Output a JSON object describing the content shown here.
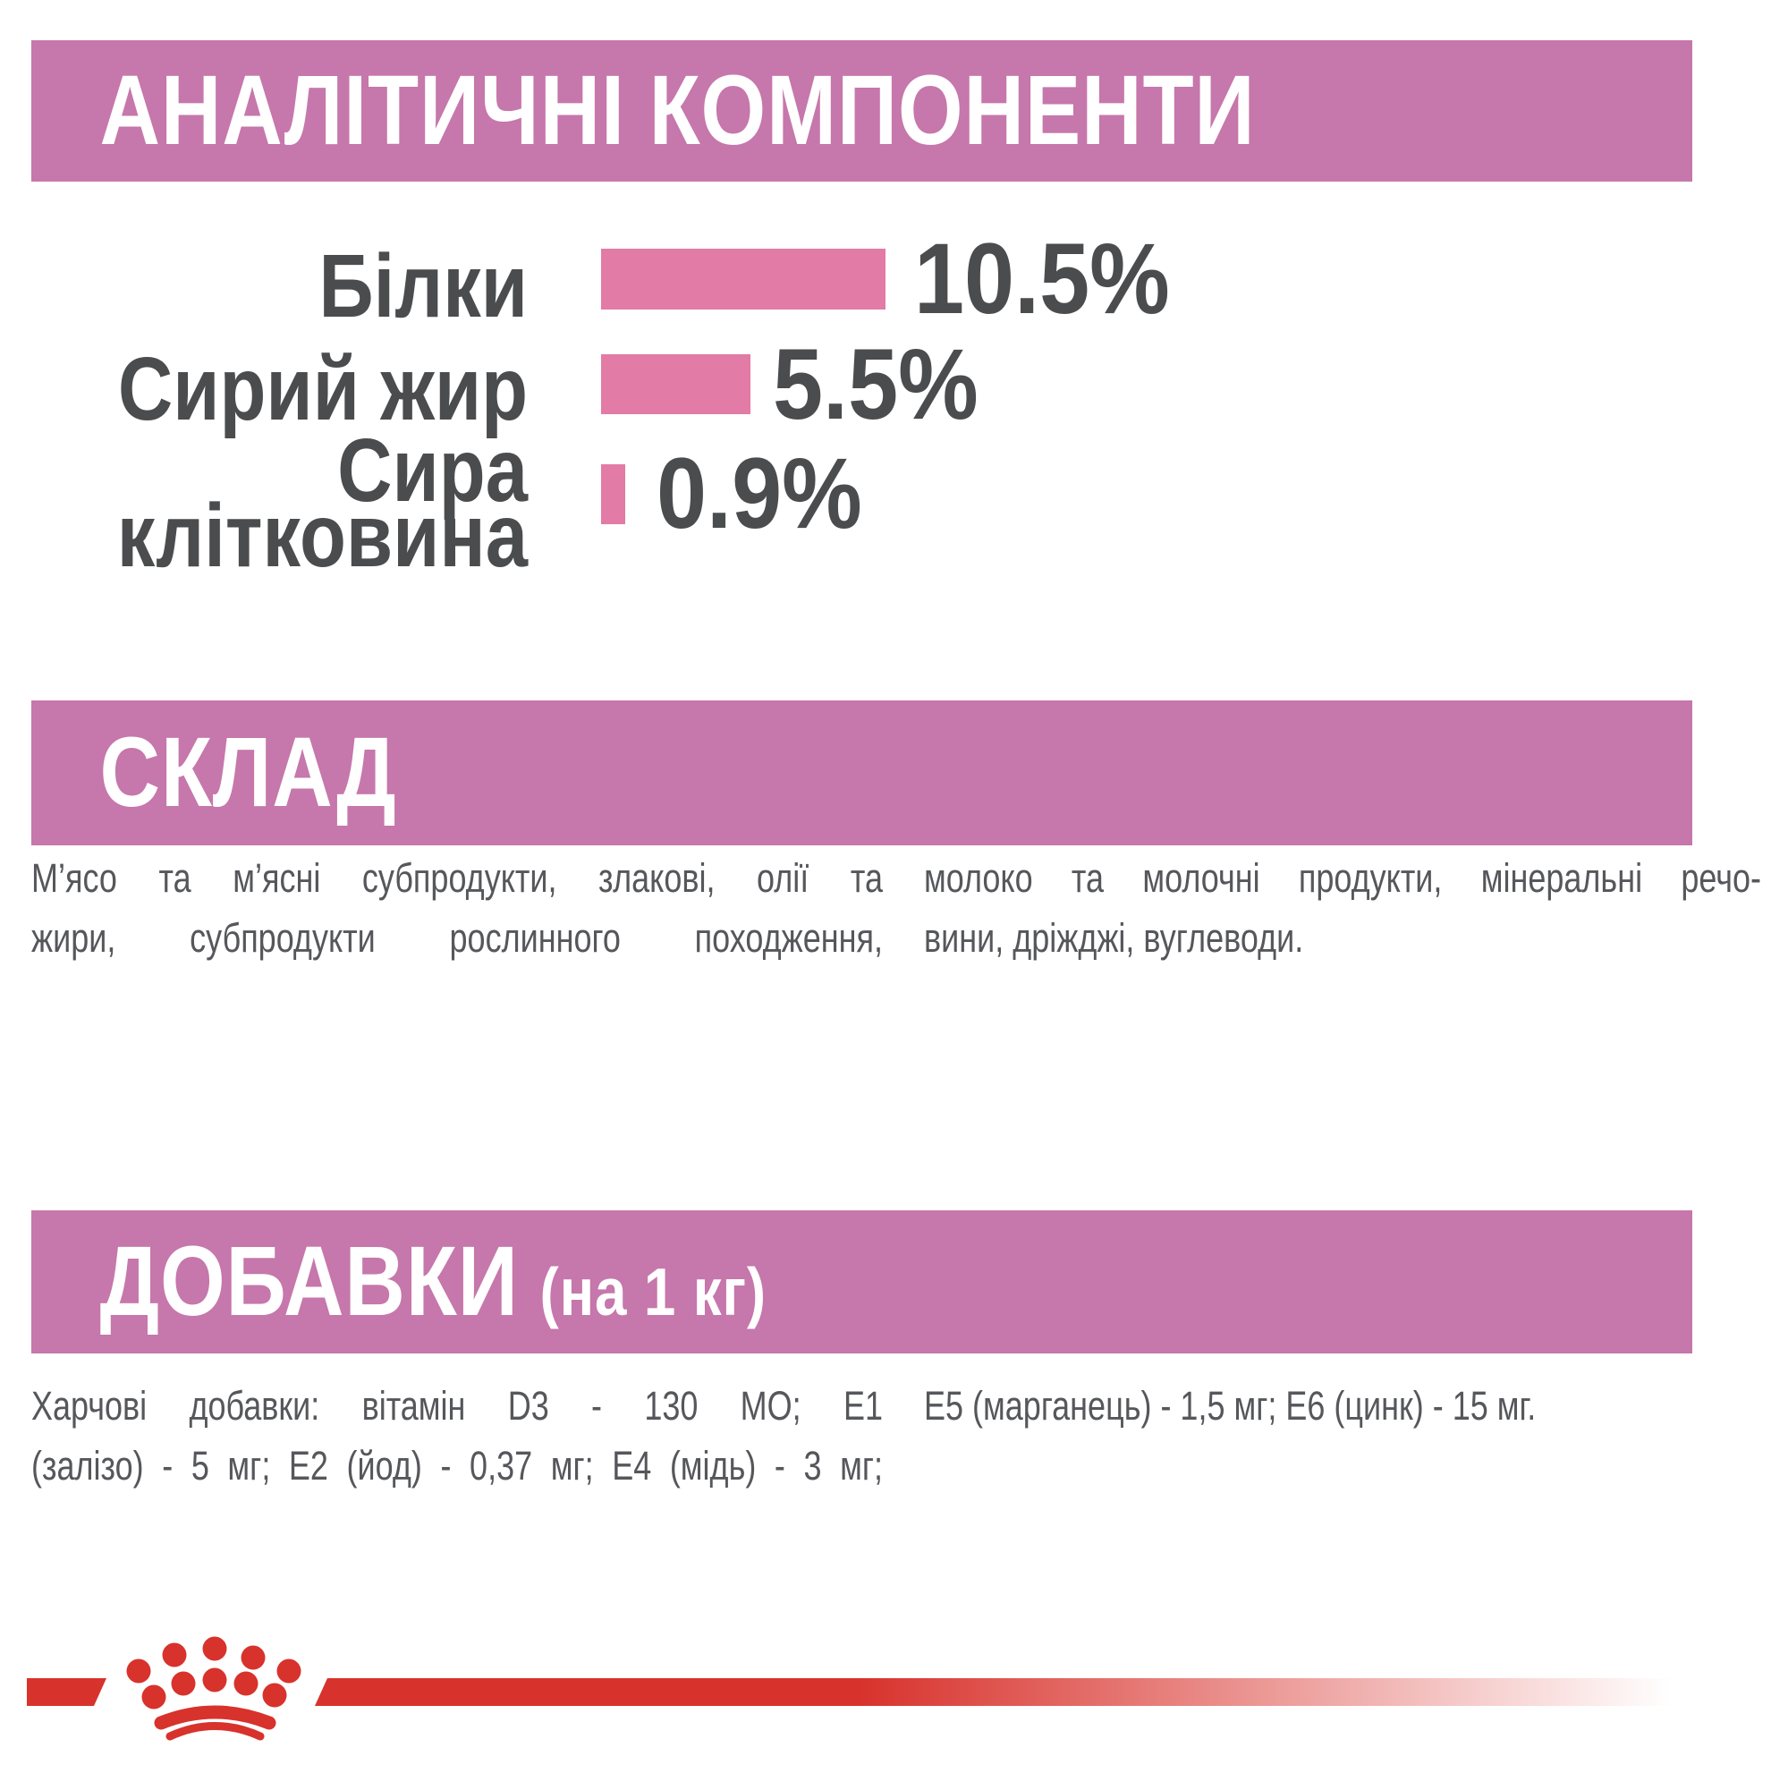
{
  "colors": {
    "banner": "#c677ab",
    "bar": "#e27ba6",
    "heading_text": "#ffffff",
    "label_text": "#4b4c4e",
    "body_text": "#56575b",
    "logo_red": "#d8322c"
  },
  "sections": {
    "analytical_components": {
      "title": "АНАЛІТИЧНІ КОМПОНЕНТИ"
    },
    "composition": {
      "title": "СКЛАД",
      "columns": [
        {
          "lines": [
            {
              "text": "М’ясо та м’ясні субпродукти, злакові, олії та",
              "fill": true
            },
            {
              "text": "жири, субпродукти рослинного походження,",
              "fill": true
            }
          ]
        },
        {
          "lines": [
            {
              "text": "молоко та молочні продукти, мінеральні речо-",
              "fill": true
            },
            {
              "text": "вини, дріжджі, вуглеводи.",
              "fill": false
            }
          ]
        }
      ]
    },
    "additives": {
      "title": "ДОБАВКИ",
      "title_suffix": "(на 1 кг)",
      "columns": [
        {
          "lines": [
            {
              "text": "Харчові добавки: вітамін D3 - 130 МО; Е1",
              "fill": true
            },
            {
              "text": "(залізо) - 5 мг; Е2 (йод) - 0,37 мг; Е4 (мідь) - 3 мг;",
              "fill": true
            }
          ]
        },
        {
          "lines": [
            {
              "text": "Е5 (марганець) - 1,5 мг; Е6 (цинк) - 15 мг.",
              "fill": false
            }
          ]
        }
      ]
    }
  },
  "chart_data": {
    "type": "bar",
    "orientation": "horizontal",
    "title": "АНАЛІТИЧНІ КОМПОНЕНТИ",
    "unit": "%",
    "xlim": [
      0,
      10.5
    ],
    "grid": false,
    "bar_color": "#e27ba6",
    "rows": [
      {
        "label": "Білки",
        "label_display": "Білки",
        "percent": 10.5,
        "value_label": "10.5%"
      },
      {
        "label": "Сирий жир",
        "label_display": "Сирий жир",
        "percent": 5.5,
        "value_label": "5.5%"
      },
      {
        "label": "Сира клітковина",
        "label_display": "Сира\nклітковина",
        "percent": 0.9,
        "value_label": "0.9%"
      }
    ]
  },
  "logo": {
    "name": "royal-canin-crown",
    "color": "#d8322c"
  }
}
